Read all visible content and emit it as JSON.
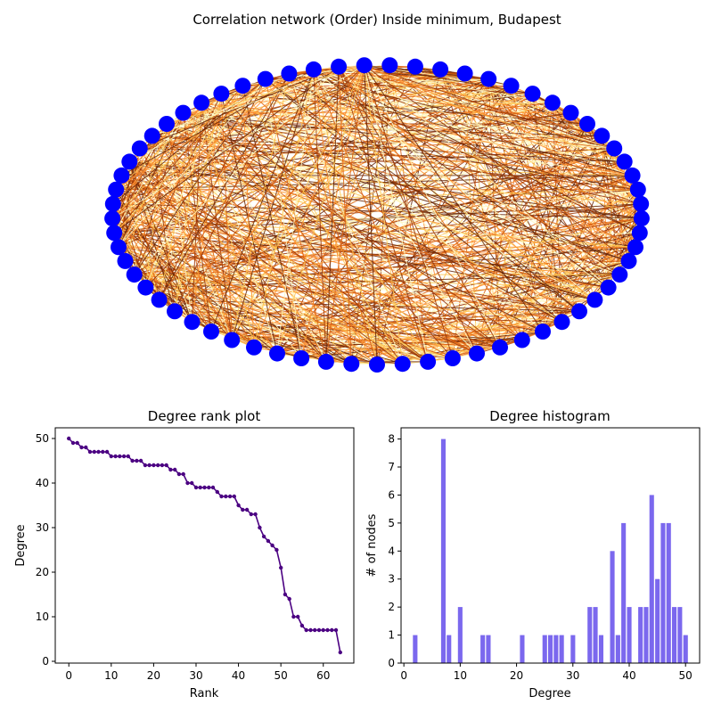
{
  "chart_data": [
    {
      "type": "network",
      "title": "Correlation network (Order) Inside minimum, Budapest",
      "node_count": 65,
      "node_color": "#0000ff",
      "edge_colormap": [
        "#fff7bc",
        "#fec44f",
        "#fb8c2c",
        "#d95f0e",
        "#993404",
        "#662506"
      ]
    },
    {
      "type": "line",
      "title": "Degree rank plot",
      "xlabel": "Rank",
      "ylabel": "Degree",
      "xlim": [
        -3.2,
        67.2
      ],
      "ylim": [
        -0.4,
        52.4
      ],
      "xticks": [
        0,
        10,
        20,
        30,
        40,
        50,
        60
      ],
      "yticks": [
        0,
        10,
        20,
        30,
        40,
        50
      ],
      "color": "#4b0082",
      "values": [
        50,
        49,
        49,
        48,
        48,
        47,
        47,
        47,
        47,
        47,
        46,
        46,
        46,
        46,
        46,
        45,
        45,
        45,
        44,
        44,
        44,
        44,
        44,
        44,
        43,
        43,
        42,
        42,
        40,
        40,
        39,
        39,
        39,
        39,
        39,
        38,
        37,
        37,
        37,
        37,
        35,
        34,
        34,
        33,
        33,
        30,
        28,
        27,
        26,
        25,
        21,
        15,
        14,
        10,
        10,
        8,
        7,
        7,
        7,
        7,
        7,
        7,
        7,
        7,
        2
      ]
    },
    {
      "type": "bar",
      "title": "Degree histogram",
      "xlabel": "Degree",
      "ylabel": "# of nodes",
      "xlim": [
        -0.5,
        52.5
      ],
      "ylim": [
        0,
        8.4
      ],
      "xticks": [
        0,
        10,
        20,
        30,
        40,
        50
      ],
      "yticks": [
        0,
        1,
        2,
        3,
        4,
        5,
        6,
        7,
        8
      ],
      "color": "#7b68ee",
      "categories": [
        2,
        7,
        8,
        10,
        14,
        15,
        21,
        25,
        26,
        27,
        28,
        30,
        33,
        34,
        35,
        37,
        38,
        39,
        40,
        42,
        43,
        44,
        45,
        46,
        47,
        48,
        49,
        50
      ],
      "values": [
        1,
        8,
        1,
        2,
        1,
        1,
        1,
        1,
        1,
        1,
        1,
        1,
        2,
        2,
        1,
        4,
        1,
        5,
        2,
        2,
        2,
        6,
        3,
        5,
        5,
        2,
        2,
        1
      ]
    }
  ]
}
